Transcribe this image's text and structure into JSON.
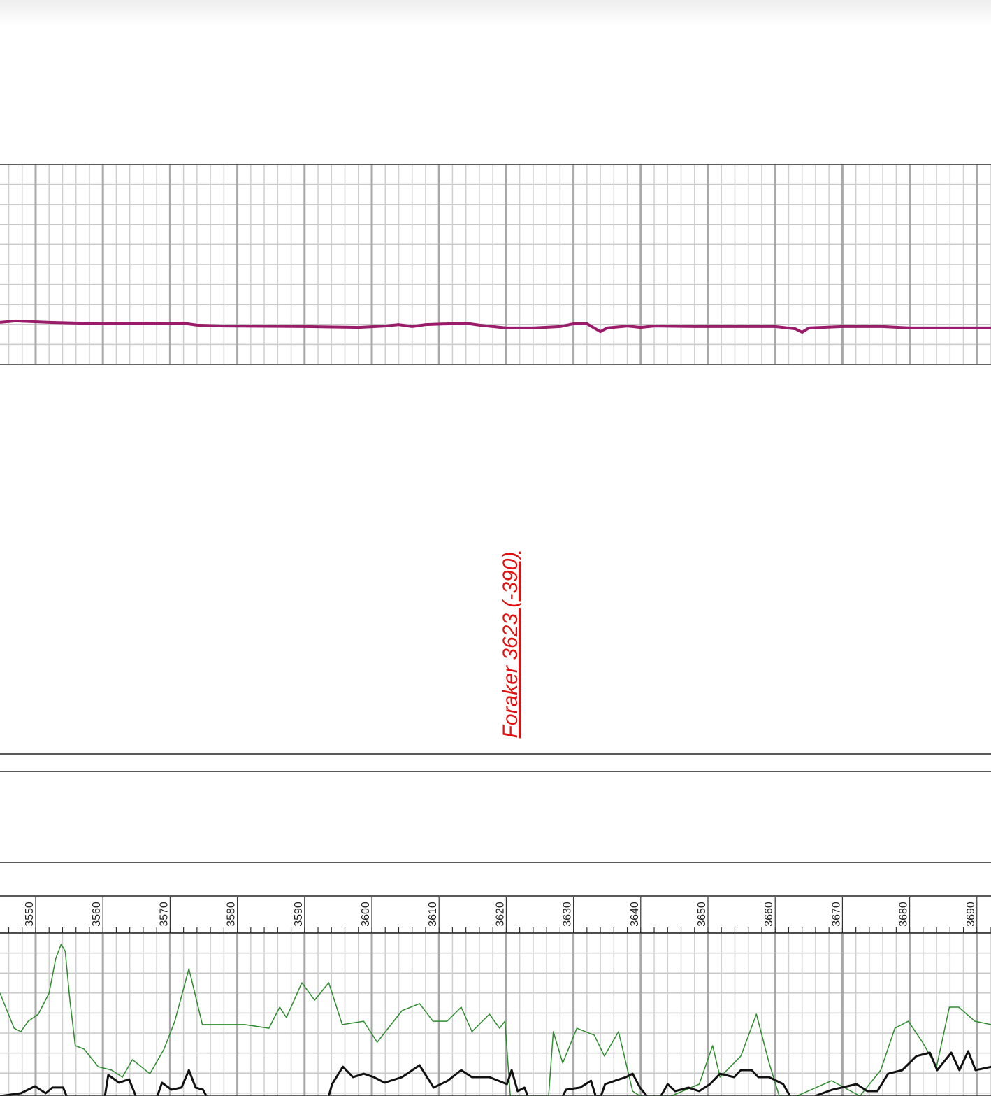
{
  "chart_data": {
    "type": "line",
    "annotation": "Foraker 3623 (-390)",
    "xlim": [
      3544.7,
      3692.1
    ],
    "xticks": [
      3550,
      3560,
      3570,
      3580,
      3590,
      3600,
      3610,
      3620,
      3630,
      3640,
      3650,
      3660,
      3670,
      3680,
      3690
    ],
    "grid": true,
    "tracks": [
      {
        "ylim": [
          0,
          100
        ],
        "series": [
          {
            "color": "#9b1b6b",
            "width": 4,
            "x": [
              3544.7,
              3547,
              3552,
              3560,
              3566,
              3570,
              3572,
              3574,
              3578,
              3590,
              3598,
              3602,
              3604,
              3606,
              3608,
              3614,
              3616,
              3620,
              3624,
              3628,
              3630,
              3632,
              3634,
              3635,
              3638,
              3640,
              3642,
              3648,
              3656,
              3660,
              3663,
              3664,
              3665,
              3670,
              3676,
              3680,
              3692.1
            ],
            "values": [
              21.0,
              21.7,
              21.0,
              20.3,
              20.6,
              20.3,
              20.6,
              19.6,
              19.2,
              18.9,
              18.5,
              19.2,
              19.9,
              18.9,
              19.9,
              20.6,
              19.6,
              18.2,
              18.2,
              18.9,
              20.3,
              20.3,
              16.4,
              18.2,
              19.2,
              18.5,
              19.2,
              18.9,
              18.9,
              18.9,
              17.8,
              16.1,
              18.2,
              18.9,
              18.9,
              18.2,
              18.2
            ]
          }
        ]
      },
      {
        "ylim": [
          0,
          100
        ],
        "series": [
          {
            "color": "#2e8b2e",
            "width": 1.5,
            "x": [
              3544.7,
              3546.8,
              3547.8,
              3548.9,
              3550.4,
              3552.0,
              3553.0,
              3553.8,
              3554.4,
              3555.1,
              3555.9,
              3557.2,
              3559.3,
              3561.3,
              3562.9,
              3564.4,
              3567.0,
              3569.1,
              3570.7,
              3572.8,
              3574.8,
              3578.0,
              3581.1,
              3584.7,
              3586.3,
              3587.3,
              3589.6,
              3591.5,
              3593.6,
              3595.6,
              3598.8,
              3600.8,
              3604.5,
              3607.1,
              3609.1,
              3611.2,
              3613.3,
              3614.9,
              3617.5,
              3619.0,
              3619.8,
              3620.6,
              3626.3,
              3627.0,
              3628.4,
              3630.5,
              3633.1,
              3634.6,
              3636.7,
              3638.8,
              3639.9,
              3644.5,
              3648.7,
              3650.7,
              3651.8,
              3654.9,
              3657.2,
              3659.1,
              3660.6,
              3663.2,
              3668.4,
              3672.6,
              3675.7,
              3677.8,
              3679.8,
              3681.9,
              3684.0,
              3685.9,
              3687.3,
              3689.7,
              3692.1
            ],
            "values": [
              63.1,
              41.6,
              39.5,
              45.9,
              50.2,
              63.1,
              84.5,
              93.1,
              88.8,
              58.8,
              30.9,
              28.8,
              18.0,
              15.9,
              11.6,
              22.3,
              13.7,
              28.8,
              45.9,
              78.1,
              43.8,
              43.8,
              43.8,
              41.6,
              54.5,
              48.1,
              69.5,
              58.8,
              69.5,
              43.8,
              45.9,
              33.0,
              52.4,
              56.7,
              45.9,
              45.9,
              54.5,
              39.5,
              50.2,
              41.6,
              45.9,
              0,
              0,
              39.5,
              20.2,
              41.6,
              37.3,
              24.5,
              39.5,
              3.0,
              0,
              0,
              7.3,
              30.9,
              11.6,
              24.5,
              50.2,
              20.2,
              0,
              0,
              9.4,
              0,
              15.9,
              41.6,
              45.9,
              33.0,
              18.0,
              54.5,
              54.5,
              45.9,
              43.8
            ]
          },
          {
            "color": "#111111",
            "width": 3,
            "x": [
              3544.7,
              3547.8,
              3549.9,
              3551.5,
              3552.5,
              3554.1,
              3554.6,
              3556,
              3560.3,
              3560.8,
              3562.4,
              3563.9,
              3564.9,
              3566,
              3568.1,
              3568.8,
              3570.2,
              3571.7,
              3572.8,
              3573.8,
              3574.9,
              3575.4,
              3585,
              3593.6,
              3594.1,
              3595.7,
              3597.2,
              3598.8,
              3600.3,
              3601.9,
              3604.5,
              3607.1,
              3609.2,
              3611.3,
              3613.3,
              3614.9,
              3617.5,
              3620.1,
              3620.8,
              3621.7,
              3622.7,
              3623.2,
              3625,
              3628.4,
              3628.9,
              3631.0,
              3632.6,
              3633.3,
              3634.1,
              3634.7,
              3636.2,
              3637.8,
              3638.8,
              3639.9,
              3640.9,
              3642,
              3643.0,
              3644.0,
              3645.1,
              3647.1,
              3648.7,
              3650.3,
              3651.8,
              3653.9,
              3654.9,
              3656.5,
              3657.5,
              3659.1,
              3661.2,
              3662.2,
              3663,
              3665.9,
              3668.5,
              3672.1,
              3673.7,
              3675.2,
              3676.8,
              3678.9,
              3681.0,
              3683.0,
              3684.1,
              3686.2,
              3687.4,
              3688.7,
              3689.8,
              3692.2
            ],
            "values": [
              0,
              1.7,
              6.0,
              1.7,
              5.2,
              5.2,
              0,
              null,
              0,
              12.9,
              8.2,
              10.3,
              0,
              null,
              0,
              8.2,
              3.9,
              5.2,
              15.9,
              5.2,
              3.9,
              0,
              null,
              0,
              7.3,
              18.0,
              11.6,
              13.7,
              11.6,
              8.2,
              11.6,
              18.9,
              5.2,
              9.4,
              15.9,
              11.6,
              11.6,
              7.3,
              15.9,
              3.0,
              5.2,
              0,
              null,
              0,
              3.9,
              5.2,
              9.4,
              0,
              0,
              7.3,
              9.4,
              11.6,
              13.7,
              5.2,
              0,
              null,
              0,
              7.3,
              3.0,
              5.2,
              3.0,
              7.3,
              13.7,
              11.6,
              15.9,
              15.9,
              11.6,
              11.6,
              7.3,
              0,
              null,
              0,
              3.9,
              7.3,
              3.0,
              3.0,
              13.7,
              15.9,
              24.5,
              26.6,
              15.9,
              26.6,
              15.9,
              27.5,
              15.9,
              18.0
            ]
          }
        ]
      }
    ]
  }
}
